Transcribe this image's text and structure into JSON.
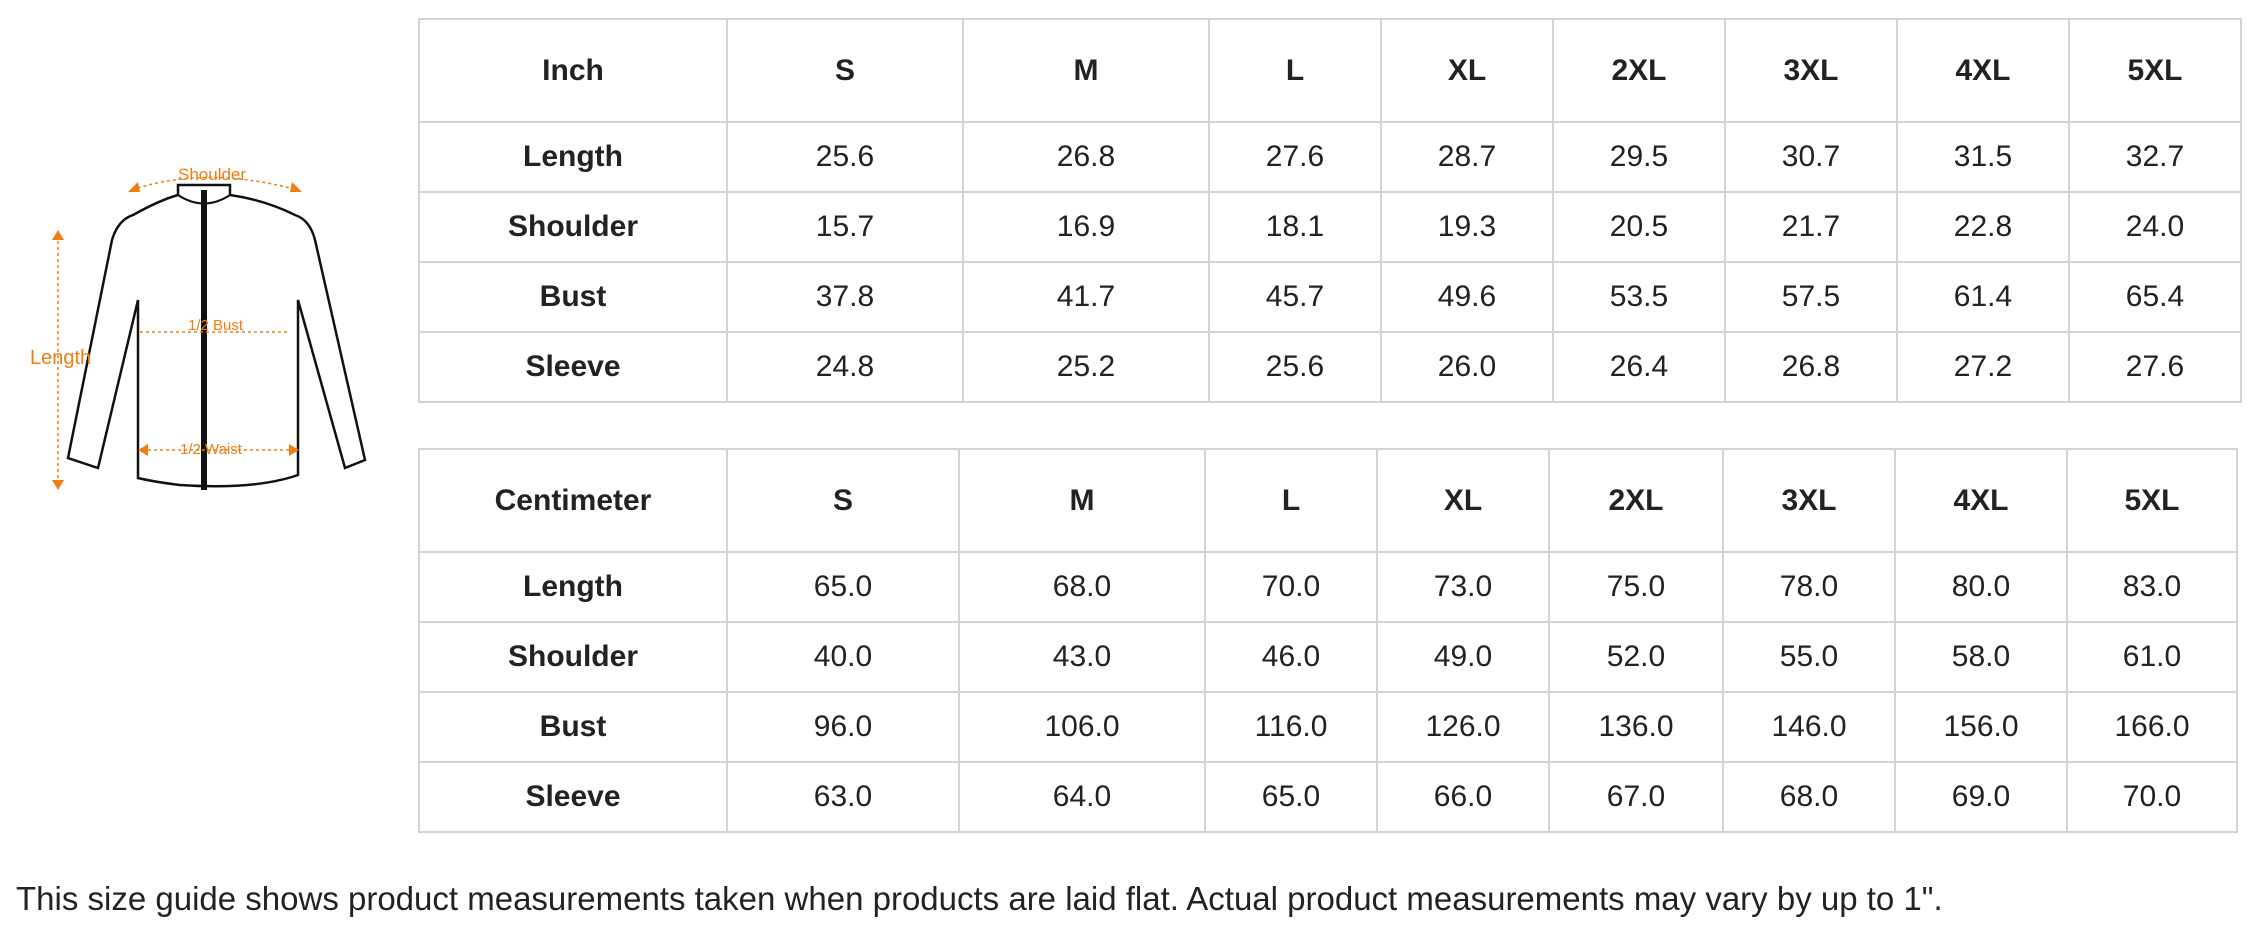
{
  "diagram": {
    "shoulder_label": "Shoulder",
    "bust_label": "1/2 Bust",
    "length_label": "Length",
    "waist_label": "1/2 Waist",
    "accent_color": "#ee7d12"
  },
  "inch_table": {
    "header": [
      "Inch",
      "S",
      "M",
      "L",
      "XL",
      "2XL",
      "3XL",
      "4XL",
      "5XL"
    ],
    "rows": [
      {
        "label": "Length",
        "values": [
          "25.6",
          "26.8",
          "27.6",
          "28.7",
          "29.5",
          "30.7",
          "31.5",
          "32.7"
        ]
      },
      {
        "label": "Shoulder",
        "values": [
          "15.7",
          "16.9",
          "18.1",
          "19.3",
          "20.5",
          "21.7",
          "22.8",
          "24.0"
        ]
      },
      {
        "label": "Bust",
        "values": [
          "37.8",
          "41.7",
          "45.7",
          "49.6",
          "53.5",
          "57.5",
          "61.4",
          "65.4"
        ]
      },
      {
        "label": "Sleeve",
        "values": [
          "24.8",
          "25.2",
          "25.6",
          "26.0",
          "26.4",
          "26.8",
          "27.2",
          "27.6"
        ]
      }
    ]
  },
  "cm_table": {
    "header": [
      "Centimeter",
      "S",
      "M",
      "L",
      "XL",
      "2XL",
      "3XL",
      "4XL",
      "5XL"
    ],
    "rows": [
      {
        "label": "Length",
        "values": [
          "65.0",
          "68.0",
          "70.0",
          "73.0",
          "75.0",
          "78.0",
          "80.0",
          "83.0"
        ]
      },
      {
        "label": "Shoulder",
        "values": [
          "40.0",
          "43.0",
          "46.0",
          "49.0",
          "52.0",
          "55.0",
          "58.0",
          "61.0"
        ]
      },
      {
        "label": "Bust",
        "values": [
          "96.0",
          "106.0",
          "116.0",
          "126.0",
          "136.0",
          "146.0",
          "156.0",
          "166.0"
        ]
      },
      {
        "label": "Sleeve",
        "values": [
          "63.0",
          "64.0",
          "65.0",
          "66.0",
          "67.0",
          "68.0",
          "69.0",
          "70.0"
        ]
      }
    ]
  },
  "note": "This size guide shows product measurements taken when products are laid flat. Actual product measurements may vary by up to 1\"."
}
